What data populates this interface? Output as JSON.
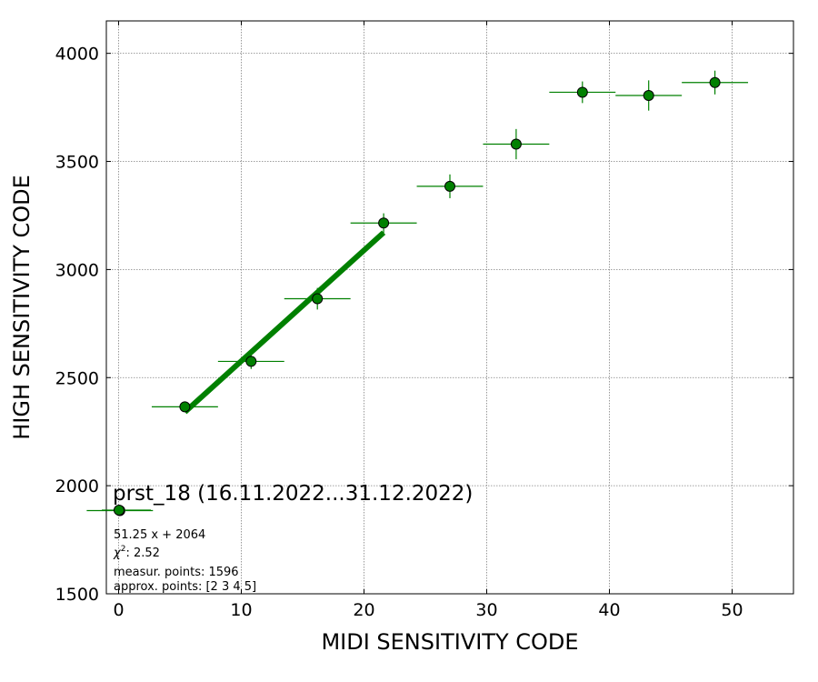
{
  "chart_data": {
    "type": "scatter",
    "xlabel": "MIDI SENSITIVITY CODE",
    "ylabel": "HIGH SENSITIVITY CODE",
    "xlim": [
      -1,
      55
    ],
    "ylim": [
      1500,
      4150
    ],
    "xticks": [
      0,
      10,
      20,
      30,
      40,
      50
    ],
    "yticks": [
      1500,
      2000,
      2500,
      3000,
      3500,
      4000
    ],
    "grid": true,
    "marker_color": "#008000",
    "marker_edge_color": "#000000",
    "fit_color": "#008000",
    "points": [
      {
        "x": 0.1,
        "y": 1885,
        "xerr": 2.7,
        "yerr": 0
      },
      {
        "x": 5.4,
        "y": 2365,
        "xerr": 2.7,
        "yerr": 22
      },
      {
        "x": 10.8,
        "y": 2575,
        "xerr": 2.7,
        "yerr": 35
      },
      {
        "x": 16.2,
        "y": 2865,
        "xerr": 2.7,
        "yerr": 50
      },
      {
        "x": 21.6,
        "y": 3215,
        "xerr": 2.7,
        "yerr": 45
      },
      {
        "x": 27.0,
        "y": 3385,
        "xerr": 2.7,
        "yerr": 55
      },
      {
        "x": 32.4,
        "y": 3580,
        "xerr": 2.7,
        "yerr": 70
      },
      {
        "x": 37.8,
        "y": 3820,
        "xerr": 2.7,
        "yerr": 50
      },
      {
        "x": 43.2,
        "y": 3805,
        "xerr": 2.7,
        "yerr": 70
      },
      {
        "x": 48.6,
        "y": 3865,
        "xerr": 2.7,
        "yerr": 55
      }
    ],
    "fit": {
      "slope": 51.25,
      "intercept": 2064,
      "x_range": [
        5.4,
        21.6
      ]
    },
    "legend": {
      "title": "prst_18 (16.11.2022...31.12.2022)",
      "fit_label": "51.25 x + 2064",
      "chi2_label": ": 2.52",
      "measured_label": "measur. points: 1596",
      "approx_label": "approx. points: [2 3 4 5]"
    }
  }
}
